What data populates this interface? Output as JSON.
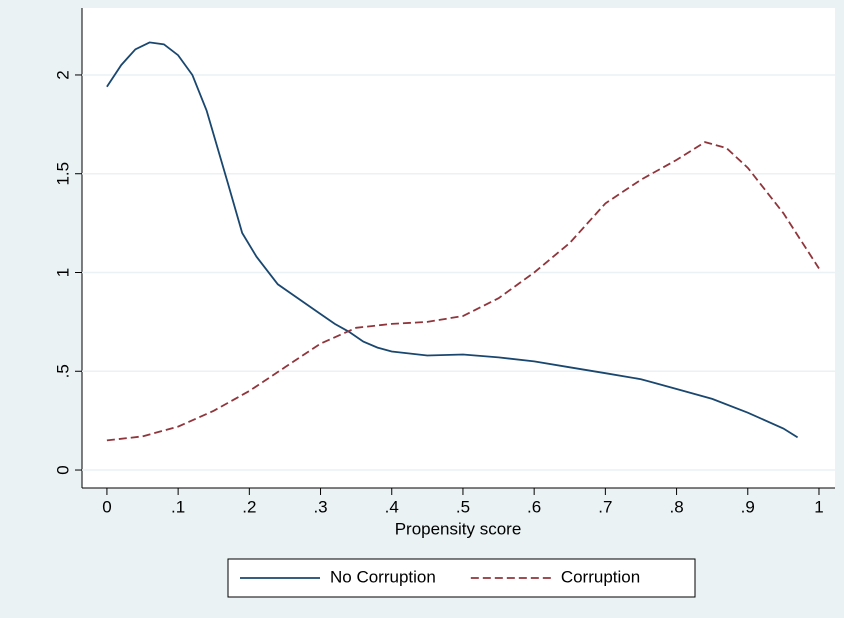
{
  "chart_data": {
    "type": "line",
    "xlabel": "Propensity score",
    "xlim": [
      -0.035,
      1.0225
    ],
    "ylim": [
      -0.091,
      2.339
    ],
    "xticks": [
      0,
      {
        "value": 0.1,
        "label": ".1"
      },
      {
        "value": 0.2,
        "label": ".2"
      },
      {
        "value": 0.3,
        "label": ".3"
      },
      {
        "value": 0.4,
        "label": ".4"
      },
      {
        "value": 0.5,
        "label": ".5"
      },
      {
        "value": 0.6,
        "label": ".6"
      },
      {
        "value": 0.7,
        "label": ".7"
      },
      {
        "value": 0.8,
        "label": ".8"
      },
      {
        "value": 0.9,
        "label": ".9"
      },
      1
    ],
    "yticks": [
      0,
      {
        "value": 0.5,
        "label": ".5"
      },
      1,
      1.5,
      2
    ],
    "grid": true,
    "legend": "bottom",
    "series": [
      {
        "name": "No Corruption",
        "color": "#1a476f",
        "dash": false,
        "x": [
          0,
          0.02,
          0.04,
          0.06,
          0.08,
          0.1,
          0.12,
          0.14,
          0.17,
          0.19,
          0.21,
          0.24,
          0.26,
          0.28,
          0.3,
          0.32,
          0.34,
          0.36,
          0.38,
          0.4,
          0.45,
          0.5,
          0.55,
          0.6,
          0.65,
          0.7,
          0.75,
          0.8,
          0.85,
          0.9,
          0.95,
          0.97
        ],
        "values": [
          1.94,
          2.05,
          2.13,
          2.165,
          2.155,
          2.1,
          2.0,
          1.82,
          1.45,
          1.2,
          1.08,
          0.94,
          0.89,
          0.84,
          0.79,
          0.74,
          0.7,
          0.65,
          0.62,
          0.6,
          0.58,
          0.585,
          0.57,
          0.55,
          0.52,
          0.49,
          0.46,
          0.41,
          0.36,
          0.29,
          0.21,
          0.165
        ]
      },
      {
        "name": "Corruption",
        "color": "#90353b",
        "dash": true,
        "x": [
          0,
          0.05,
          0.1,
          0.15,
          0.2,
          0.25,
          0.3,
          0.35,
          0.4,
          0.45,
          0.5,
          0.55,
          0.6,
          0.65,
          0.7,
          0.75,
          0.8,
          0.84,
          0.87,
          0.9,
          0.95,
          1
        ],
        "values": [
          0.15,
          0.17,
          0.22,
          0.3,
          0.4,
          0.52,
          0.64,
          0.72,
          0.74,
          0.75,
          0.78,
          0.87,
          1.0,
          1.15,
          1.35,
          1.47,
          1.57,
          1.66,
          1.63,
          1.53,
          1.3,
          1.02
        ]
      }
    ]
  }
}
